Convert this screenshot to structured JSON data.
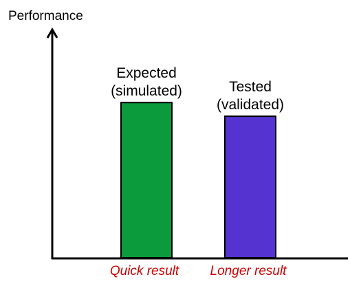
{
  "chart_data": {
    "type": "bar",
    "ylabel": "Performance",
    "xlabel": "",
    "ylim": [
      0,
      100
    ],
    "categories": [
      "Quick result",
      "Longer result"
    ],
    "bar_labels": [
      [
        "Expected",
        "(simulated)"
      ],
      [
        "Tested",
        "(validated)"
      ]
    ],
    "values": [
      68,
      62
    ],
    "colors": {
      "bars": [
        "#0B9A3C",
        "#5533D0"
      ],
      "category_label": "#CC0000",
      "bar_outline": "#000000",
      "axis": "#000000"
    },
    "grid": false,
    "legend": "none"
  }
}
